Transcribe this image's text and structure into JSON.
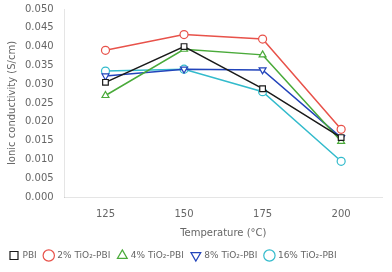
{
  "chart_data": {
    "type": "line",
    "x": [
      125,
      150,
      175,
      200
    ],
    "series": [
      {
        "name": "PBI",
        "color": "#1a1a1a",
        "marker": "square",
        "line_style": "solid",
        "values": [
          0.0305,
          0.04,
          0.0288,
          0.0158
        ]
      },
      {
        "name": "2% TiO₂-PBI",
        "color": "#e8524a",
        "marker": "circle",
        "line_style": "solid",
        "values": [
          0.039,
          0.0432,
          0.042,
          0.018
        ]
      },
      {
        "name": "4% TiO₂-PBI",
        "color": "#4aaa3a",
        "marker": "triangle_up",
        "line_style": "solid",
        "values": [
          0.027,
          0.0393,
          0.0378,
          0.0148
        ]
      },
      {
        "name": "8% TiO₂-PBI",
        "color": "#2244bb",
        "marker": "triangle_down",
        "line_style": "solid",
        "values": [
          0.0322,
          0.034,
          0.0338,
          0.0158
        ]
      },
      {
        "name": "16% TiO₂-PBI",
        "color": "#33bbcc",
        "marker": "circle",
        "line_style": "solid",
        "values": [
          0.0335,
          0.034,
          0.028,
          0.0095
        ]
      }
    ],
    "xlabel": "Temperature (°C)",
    "ylabel": "Ionic conductivity (S/cm)",
    "xlim": [
      112,
      213
    ],
    "ylim": [
      0.0,
      0.05
    ],
    "xticks": [
      125,
      150,
      175,
      200
    ],
    "yticks": [
      {
        "value": 0,
        "label": "0.000"
      },
      0.005,
      {
        "value": 0.01,
        "label": "0.010"
      },
      0.015,
      {
        "value": 0.02,
        "label": "0.020"
      },
      0.025,
      {
        "value": 0.03,
        "label": "0.030"
      },
      0.035,
      {
        "value": 0.04,
        "label": "0.040"
      },
      0.045,
      {
        "value": 0.05,
        "label": "0.050"
      }
    ],
    "legend": "lower left",
    "grid": false
  }
}
